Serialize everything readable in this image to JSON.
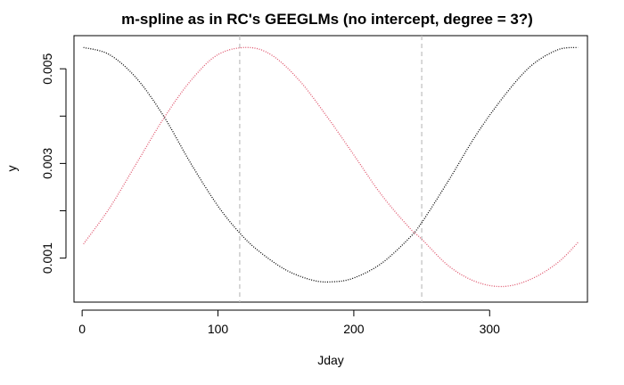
{
  "chart_data": {
    "type": "line",
    "title": "m-spline as in RC's GEEGLMs (no intercept, degree = 3?)",
    "xlabel": "Jday",
    "ylabel": "y",
    "xlim": [
      -6,
      372
    ],
    "ylim": [
      7e-05,
      0.0057
    ],
    "xticks": [
      0,
      100,
      200,
      300
    ],
    "xtick_labels": [
      "0",
      "100",
      "200",
      "300"
    ],
    "yticks": [
      0.001,
      0.003,
      0.005
    ],
    "ytick_labels": [
      "0.001",
      "0.003",
      "0.005"
    ],
    "yticks_unlabeled": [
      0.002,
      0.004
    ],
    "grid": false,
    "legend": "none",
    "vlines": [
      116,
      250
    ],
    "vline_color": "#bebebe",
    "series": [
      {
        "color": "#000000",
        "style": "dotted",
        "x": [
          1,
          20,
          40,
          60,
          80,
          100,
          116,
          130,
          150,
          170,
          185,
          200,
          220,
          240,
          250,
          270,
          290,
          310,
          330,
          350,
          365
        ],
        "y": [
          0.00545,
          0.0053,
          0.0048,
          0.004,
          0.003,
          0.0021,
          0.00153,
          0.00115,
          0.00075,
          0.00053,
          0.0005,
          0.00058,
          0.00088,
          0.0014,
          0.00175,
          0.00265,
          0.0036,
          0.0044,
          0.00505,
          0.0054,
          0.00545
        ]
      },
      {
        "color": "#df536b",
        "style": "dotted",
        "x": [
          1,
          20,
          40,
          60,
          80,
          100,
          122,
          140,
          160,
          180,
          200,
          220,
          240,
          250,
          270,
          290,
          310,
          330,
          350,
          365
        ],
        "y": [
          0.0013,
          0.00205,
          0.003,
          0.00395,
          0.00475,
          0.0053,
          0.00545,
          0.00528,
          0.00475,
          0.004,
          0.00318,
          0.00235,
          0.00167,
          0.0014,
          0.00083,
          0.0005,
          0.0004,
          0.00055,
          0.0009,
          0.00133
        ]
      }
    ]
  }
}
